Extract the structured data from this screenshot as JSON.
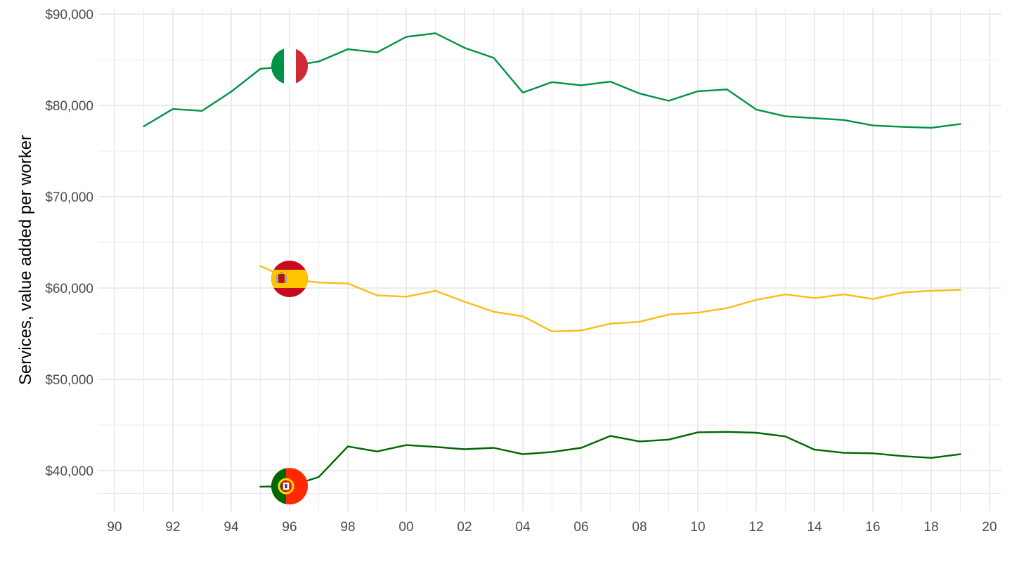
{
  "chart_data": {
    "type": "line",
    "title": "",
    "xlabel": "",
    "ylabel": "Services, value added per worker",
    "xlim": [
      1990,
      2020
    ],
    "ylim": [
      36000,
      90000
    ],
    "x_ticks": [
      1990,
      1992,
      1994,
      1996,
      1998,
      2000,
      2002,
      2004,
      2006,
      2008,
      2010,
      2012,
      2014,
      2016,
      2018,
      2020
    ],
    "x_tick_labels": [
      "90",
      "92",
      "94",
      "96",
      "98",
      "00",
      "02",
      "04",
      "06",
      "08",
      "10",
      "12",
      "14",
      "16",
      "18",
      "20"
    ],
    "y_ticks": [
      40000,
      50000,
      60000,
      70000,
      80000,
      90000
    ],
    "y_tick_labels": [
      "$40,000",
      "$50,000",
      "$60,000",
      "$70,000",
      "$80,000",
      "$90,000"
    ],
    "grid": true,
    "legend": "none",
    "series": [
      {
        "country": "Italy",
        "flag": "italy-flag",
        "color": "#009246",
        "flag_at": [
          1996,
          84300
        ],
        "x": [
          1991,
          1992,
          1993,
          1994,
          1995,
          1996,
          1997,
          1998,
          1999,
          2000,
          2001,
          2002,
          2003,
          2004,
          2005,
          2006,
          2007,
          2008,
          2009,
          2010,
          2011,
          2012,
          2013,
          2014,
          2015,
          2016,
          2017,
          2018,
          2019
        ],
        "values": [
          77700,
          79600,
          79400,
          81500,
          84000,
          84300,
          84800,
          86150,
          85800,
          87500,
          87900,
          86300,
          85200,
          81400,
          82550,
          82200,
          82600,
          81300,
          80500,
          81550,
          81750,
          79550,
          78800,
          78600,
          78400,
          77800,
          77650,
          77550,
          77950
        ]
      },
      {
        "country": "Spain",
        "flag": "spain-flag",
        "color": "#F9BD1A",
        "flag_at": [
          1996,
          61000
        ],
        "x": [
          1995,
          1996,
          1997,
          1998,
          1999,
          2000,
          2001,
          2002,
          2003,
          2004,
          2005,
          2006,
          2007,
          2008,
          2009,
          2010,
          2011,
          2012,
          2013,
          2014,
          2015,
          2016,
          2017,
          2018,
          2019
        ],
        "values": [
          62400,
          61000,
          60600,
          60500,
          59200,
          59050,
          59700,
          58500,
          57400,
          56900,
          55250,
          55350,
          56100,
          56300,
          57100,
          57300,
          57800,
          58700,
          59300,
          58900,
          59300,
          58800,
          59500,
          59700,
          59800
        ]
      },
      {
        "country": "Portugal",
        "flag": "portugal-flag",
        "color": "#006600",
        "flag_at": [
          1996,
          38300
        ],
        "x": [
          1995,
          1996,
          1997,
          1998,
          1999,
          2000,
          2001,
          2002,
          2003,
          2004,
          2005,
          2006,
          2007,
          2008,
          2009,
          2010,
          2011,
          2012,
          2013,
          2014,
          2015,
          2016,
          2017,
          2018,
          2019
        ],
        "values": [
          38250,
          38300,
          39300,
          42650,
          42100,
          42800,
          42600,
          42350,
          42500,
          41800,
          42050,
          42500,
          43800,
          43200,
          43400,
          44200,
          44250,
          44150,
          43750,
          42300,
          41950,
          41900,
          41600,
          41400,
          41800
        ]
      }
    ]
  }
}
